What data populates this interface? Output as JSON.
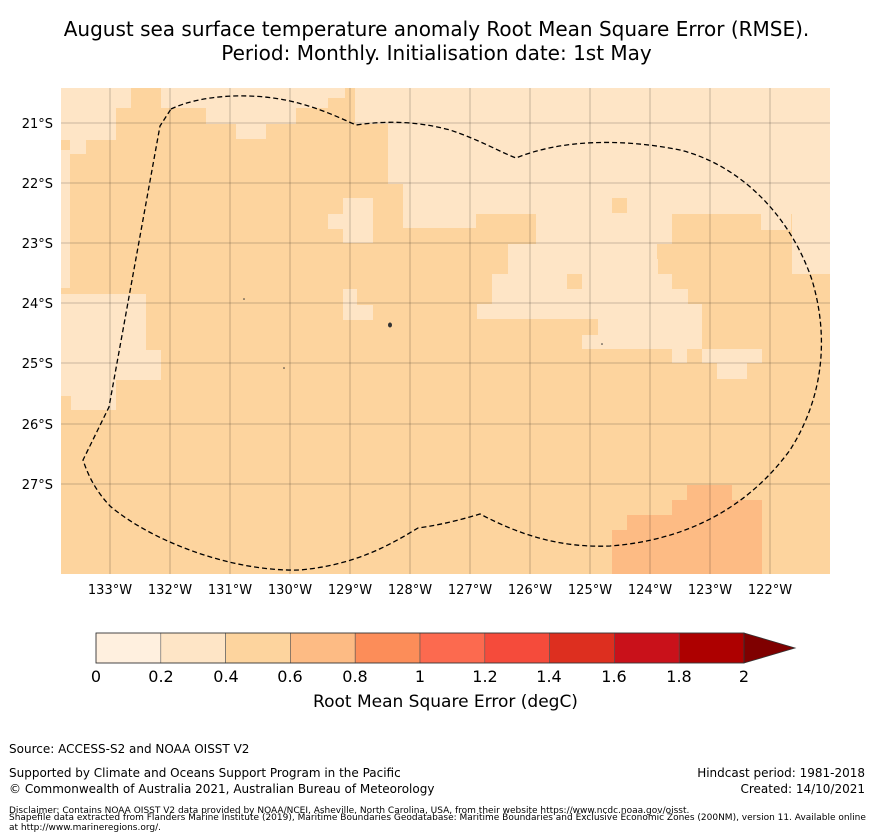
{
  "title": {
    "line1": "August sea surface temperature anomaly Root Mean Square Error (RMSE).",
    "line2": "Period: Monthly. Initialisation date: 1st May"
  },
  "map": {
    "lat_labels": [
      "21°S",
      "22°S",
      "23°S",
      "24°S",
      "25°S",
      "26°S",
      "27°S"
    ],
    "lon_labels": [
      "133°W",
      "132°W",
      "131°W",
      "130°W",
      "129°W",
      "128°W",
      "127°W",
      "126°W",
      "125°W",
      "124°W",
      "123°W",
      "122°W"
    ],
    "boundary": "dashed black line (Exclusive Economic Zone)",
    "dominant_rmse_class": "0.4–0.6",
    "classes_present": [
      "0.2–0.4",
      "0.4–0.6",
      "0.6–0.8"
    ]
  },
  "colorbar": {
    "ticks": [
      "0",
      "0.2",
      "0.4",
      "0.6",
      "0.8",
      "1",
      "1.2",
      "1.4",
      "1.6",
      "1.8",
      "2"
    ],
    "colors": [
      "#fff0df",
      "#fee5c6",
      "#fdd49e",
      "#fdbb84",
      "#fc8d59",
      "#fc6a4f",
      "#f54b3b",
      "#dd2f1f",
      "#c9111a",
      "#ad0000"
    ],
    "extend_color": "#7f0000",
    "label": "Root Mean Square Error (degC)"
  },
  "footer": {
    "source": "Source: ACCESS-S2 and NOAA OISST V2",
    "supported": "Supported by Climate and Oceans Support Program in the Pacific",
    "copyright": "© Commonwealth of Australia 2021, Australian Bureau of Meteorology",
    "hindcast": "Hindcast period: 1981-2018",
    "created": "Created: 14/10/2021",
    "disclaimer1": "Disclaimer: Contains NOAA OISST V2 data provided by NOAA/NCEI, Asheville, North Carolina, USA, from their website https://www.ncdc.noaa.gov/oisst.",
    "disclaimer2": "Shapefile data extracted from Flanders Marine Institute (2019), Maritime Boundaries Geodatabase: Maritime Boundaries and Exclusive Economic Zones (200NM), version 11. Available online at http://www.marineregions.org/."
  }
}
